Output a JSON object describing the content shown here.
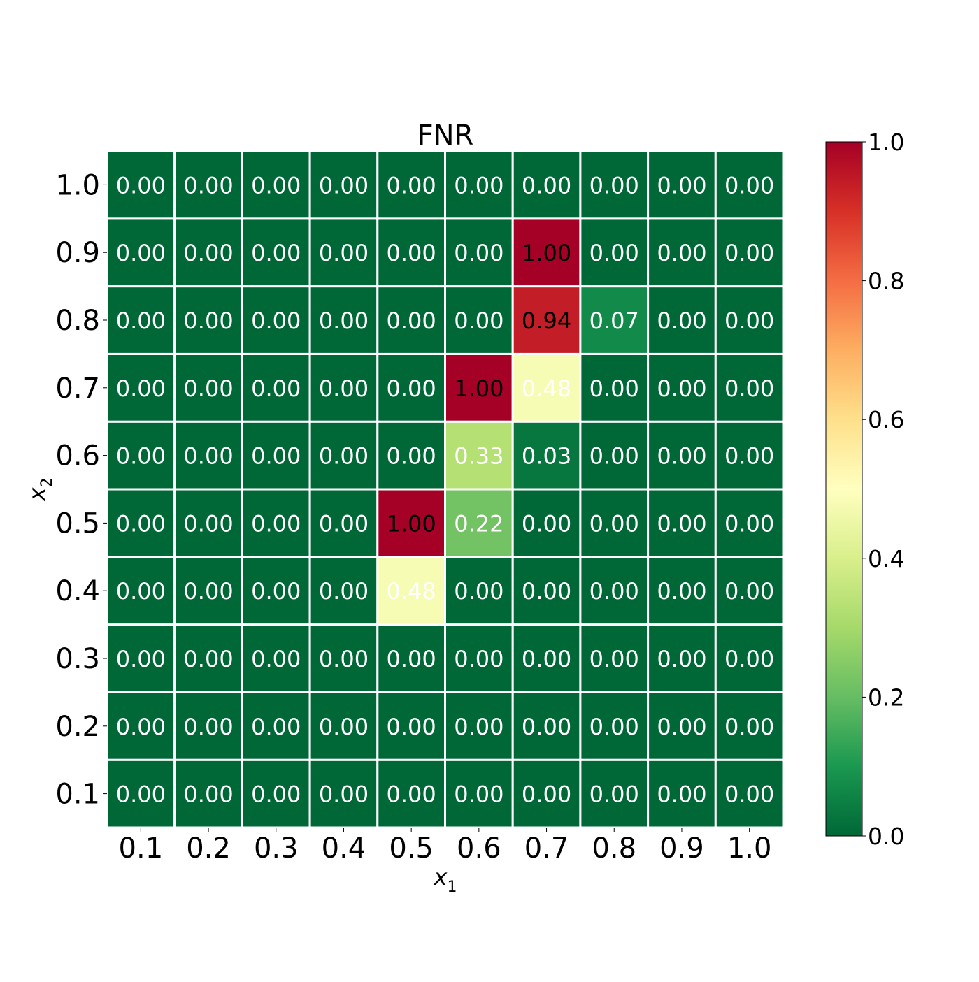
{
  "chart_data": {
    "type": "heatmap",
    "title": "FNR",
    "xlabel_base": "x",
    "xlabel_sub": "1",
    "ylabel_base": "x",
    "ylabel_sub": "2",
    "x_categories": [
      "0.1",
      "0.2",
      "0.3",
      "0.4",
      "0.5",
      "0.6",
      "0.7",
      "0.8",
      "0.9",
      "1.0"
    ],
    "y_categories": [
      "0.1",
      "0.2",
      "0.3",
      "0.4",
      "0.5",
      "0.6",
      "0.7",
      "0.8",
      "0.9",
      "1.0"
    ],
    "values": [
      [
        0,
        0,
        0,
        0,
        0,
        0,
        0,
        0,
        0,
        0
      ],
      [
        0,
        0,
        0,
        0,
        0,
        0,
        0,
        0,
        0,
        0
      ],
      [
        0,
        0,
        0,
        0,
        0,
        0,
        0,
        0,
        0,
        0
      ],
      [
        0,
        0,
        0,
        0,
        0.48,
        0,
        0,
        0,
        0,
        0
      ],
      [
        0,
        0,
        0,
        0,
        1.0,
        0.22,
        0,
        0,
        0,
        0
      ],
      [
        0,
        0,
        0,
        0,
        0,
        0.33,
        0.03,
        0,
        0,
        0
      ],
      [
        0,
        0,
        0,
        0,
        0,
        1.0,
        0.48,
        0,
        0,
        0
      ],
      [
        0,
        0,
        0,
        0,
        0,
        0,
        0.94,
        0.07,
        0,
        0
      ],
      [
        0,
        0,
        0,
        0,
        0,
        0,
        1.0,
        0,
        0,
        0
      ],
      [
        0,
        0,
        0,
        0,
        0,
        0,
        0,
        0,
        0,
        0
      ]
    ],
    "value_format_decimals": 2,
    "colormap": "RdYlGn_r",
    "colorbar": {
      "range": [
        0.0,
        1.0
      ],
      "ticks": [
        "0.0",
        "0.2",
        "0.4",
        "0.6",
        "0.8",
        "1.0"
      ]
    },
    "grid_line_color": "#ffffff"
  }
}
